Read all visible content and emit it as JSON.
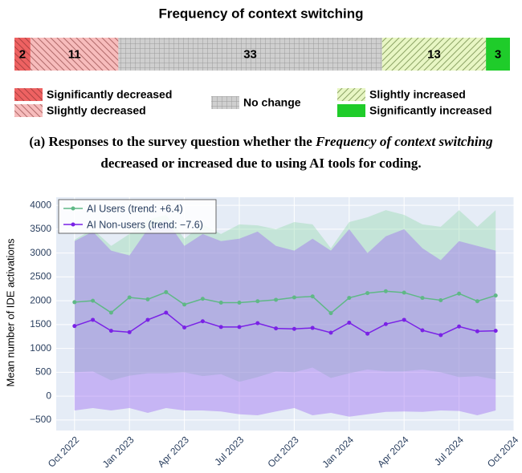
{
  "chart_data": [
    {
      "type": "stacked_bar",
      "orientation": "horizontal",
      "title": "Frequency of context switching",
      "series": [
        {
          "name": "Significantly decreased",
          "color": "#ee6262",
          "pattern": "\\",
          "values": [
            2
          ]
        },
        {
          "name": "Slightly decreased",
          "color": "#f7bcbc",
          "pattern": "\\",
          "values": [
            11
          ]
        },
        {
          "name": "No change",
          "color": "#cfcfcf",
          "pattern": "+",
          "values": [
            33
          ]
        },
        {
          "name": "Slightly increased",
          "color": "#e8f6c4",
          "pattern": "/",
          "values": [
            13
          ]
        },
        {
          "name": "Significantly increased",
          "color": "#1fcc2a",
          "pattern": "",
          "values": [
            3
          ]
        }
      ]
    },
    {
      "type": "line",
      "x": [
        "2022-10",
        "2022-11",
        "2022-12",
        "2023-01",
        "2023-02",
        "2023-03",
        "2023-04",
        "2023-05",
        "2023-06",
        "2023-07",
        "2023-08",
        "2023-09",
        "2023-10",
        "2023-11",
        "2023-12",
        "2024-01",
        "2024-02",
        "2024-03",
        "2024-04",
        "2024-05",
        "2024-06",
        "2024-07",
        "2024-08",
        "2024-09"
      ],
      "series": [
        {
          "name": "AI Users (trend: +6.4)",
          "color": "#5fb886",
          "band_color": "#8fd7a8",
          "band_opacity": 0.38,
          "values": [
            1970,
            2000,
            1750,
            2070,
            2030,
            2180,
            1920,
            2040,
            1960,
            1960,
            1990,
            2020,
            2070,
            2090,
            1740,
            2060,
            2160,
            2200,
            2170,
            2060,
            2010,
            2150,
            1990,
            2110
          ],
          "upper": [
            3280,
            3500,
            3150,
            3400,
            3700,
            3800,
            3300,
            3600,
            3400,
            3600,
            3580,
            3500,
            3650,
            3600,
            3100,
            3650,
            3750,
            3900,
            3800,
            3600,
            3550,
            3900,
            3550,
            3900
          ],
          "lower": [
            500,
            520,
            330,
            430,
            480,
            480,
            500,
            420,
            460,
            300,
            400,
            520,
            500,
            600,
            380,
            480,
            560,
            520,
            520,
            560,
            500,
            400,
            420,
            350
          ]
        },
        {
          "name": "AI Non-users (trend: −7.6)",
          "color": "#7a22e6",
          "band_color": "#9a6af0",
          "band_opacity": 0.42,
          "values": [
            1470,
            1600,
            1370,
            1340,
            1600,
            1750,
            1440,
            1570,
            1450,
            1450,
            1530,
            1420,
            1410,
            1430,
            1330,
            1540,
            1310,
            1510,
            1600,
            1380,
            1280,
            1460,
            1360,
            1370
          ],
          "upper": [
            3250,
            3450,
            3050,
            2950,
            3500,
            3700,
            3150,
            3400,
            3250,
            3300,
            3450,
            3150,
            3050,
            3300,
            3050,
            3500,
            3000,
            3350,
            3500,
            3100,
            2850,
            3250,
            3150,
            3050
          ],
          "lower": [
            -300,
            -250,
            -300,
            -250,
            -350,
            -250,
            -300,
            -300,
            -320,
            -380,
            -400,
            -320,
            -250,
            -400,
            -350,
            -430,
            -380,
            -330,
            -320,
            -330,
            -300,
            -310,
            -400,
            -300
          ]
        }
      ],
      "xlim": [
        "2022-09",
        "2024-10"
      ],
      "xticks": [
        {
          "value": "2022-10",
          "label": "Oct 2022"
        },
        {
          "value": "2023-01",
          "label": "Jan 2023"
        },
        {
          "value": "2023-04",
          "label": "Apr 2023"
        },
        {
          "value": "2023-07",
          "label": "Jul 2023"
        },
        {
          "value": "2023-10",
          "label": "Oct 2023"
        },
        {
          "value": "2024-01",
          "label": "Jan 2024"
        },
        {
          "value": "2024-04",
          "label": "Apr 2024"
        },
        {
          "value": "2024-07",
          "label": "Jul 2024"
        },
        {
          "value": "2024-10",
          "label": "Oct 2024"
        }
      ],
      "ylim": [
        -720,
        4170
      ],
      "yticks": [
        {
          "value": -500,
          "label": "−500"
        },
        0,
        500,
        1000,
        1500,
        2000,
        2500,
        3000,
        3500,
        4000
      ],
      "ylabel": "Mean number of IDE activations",
      "grid": true,
      "legend": "top-left"
    }
  ],
  "caption": {
    "before": "(a) Responses to the survey question whether the ",
    "emphasis": "Frequency of context switching",
    "after": " decreased or increased due to using AI tools for coding."
  }
}
